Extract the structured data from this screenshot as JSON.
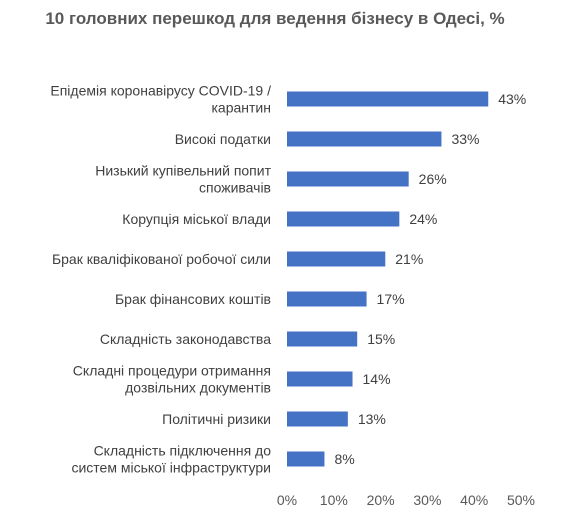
{
  "chart_data": {
    "type": "bar",
    "orientation": "horizontal",
    "title": "10 головних перешкод для ведення бізнесу в Одесі, %",
    "categories": [
      [
        "Епідемія коронавірусу COVID-19 /",
        "карантин"
      ],
      [
        "Високі податки"
      ],
      [
        "Низький купівельний попит",
        "споживачів"
      ],
      [
        "Корупція міської влади"
      ],
      [
        "Брак кваліфікованої робочої сили"
      ],
      [
        "Брак фінансових коштів"
      ],
      [
        "Складність законодавства"
      ],
      [
        "Складні процедури отримання",
        "дозвільних документів"
      ],
      [
        "Політичні ризики"
      ],
      [
        "Складність підключення до",
        "систем міської інфраструктури"
      ]
    ],
    "values": [
      43,
      33,
      26,
      24,
      21,
      17,
      15,
      14,
      13,
      8
    ],
    "data_labels": [
      "43%",
      "33%",
      "26%",
      "24%",
      "21%",
      "17%",
      "15%",
      "14%",
      "13%",
      "8%"
    ],
    "x_ticks": [
      "0%",
      "10%",
      "20%",
      "30%",
      "40%",
      "50%"
    ],
    "xlim": [
      0,
      50
    ],
    "grid": false,
    "legend": "none",
    "bar_color": "#4472C4"
  }
}
